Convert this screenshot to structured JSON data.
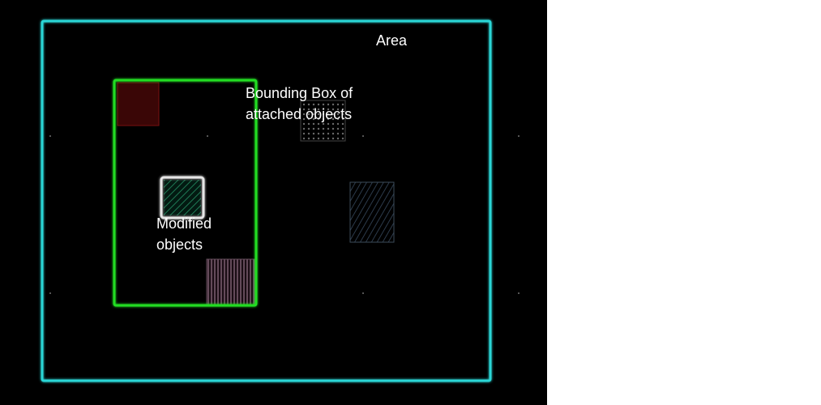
{
  "labels": {
    "area": "Area",
    "bounding_box": "Bounding Box of\nattached objects",
    "modified": "Modified\nobjects"
  },
  "colors": {
    "background": "#000000",
    "area_border": "#2ad6d6",
    "bounding_box_border": "#22dd22",
    "modified_highlight": "#e6e6e6",
    "red_object": "#5a0a0a",
    "text": "#ffffff"
  },
  "icons": {
    "red-block": "solid dark red square",
    "dotted-block": "dotted grey pattern",
    "green-hatched-block": "green diagonal hatch",
    "blue-hatched-block": "blue-grey diagonal hatch",
    "pink-striped-block": "pink vertical stripes"
  }
}
